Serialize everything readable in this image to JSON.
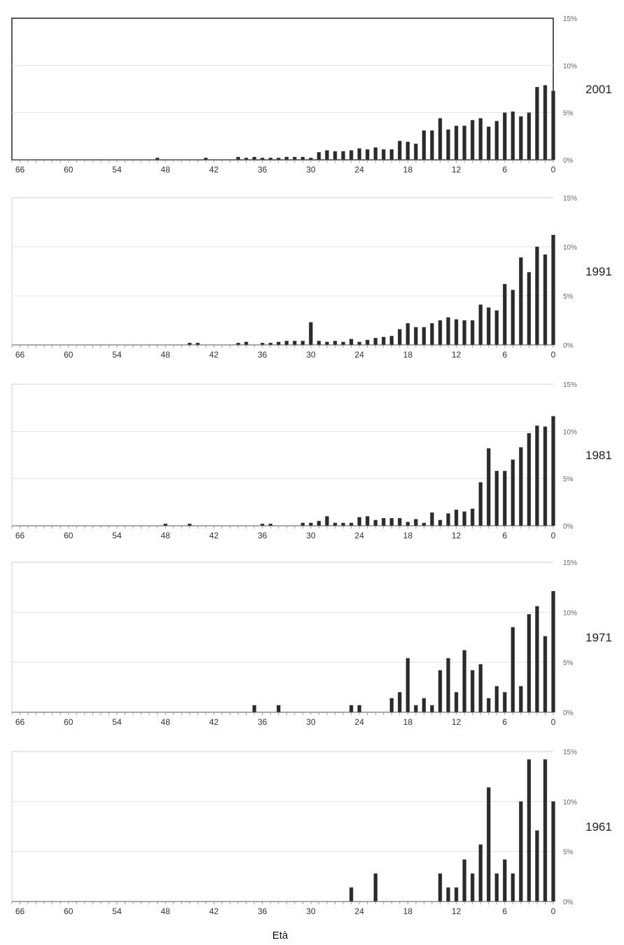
{
  "chart_data": [
    {
      "type": "bar",
      "series": [
        {
          "name": "2001",
          "values": [
            0,
            0,
            0,
            0,
            0,
            0,
            0,
            0,
            0,
            0,
            0,
            0,
            0,
            0,
            0,
            0,
            0,
            0,
            0.2,
            0,
            0,
            0,
            0,
            0,
            0.2,
            0,
            0,
            0,
            0.3,
            0.2,
            0.3,
            0.2,
            0.2,
            0.2,
            0.3,
            0.3,
            0.3,
            0.2,
            0.8,
            1.0,
            0.9,
            0.9,
            1.0,
            1.2,
            1.1,
            1.3,
            1.1,
            1.1,
            2.0,
            1.9,
            1.7,
            3.1,
            3.1,
            4.4,
            3.2,
            3.6,
            3.6,
            4.2,
            4.4,
            3.5,
            4.1,
            5.0,
            5.1,
            4.6,
            5.0,
            7.7,
            7.9,
            7.3
          ]
        }
      ],
      "xlim": [
        67,
        0
      ],
      "ylim": [
        0,
        15
      ],
      "ytick_labels": [
        "0%",
        "5%",
        "10%",
        "15%"
      ],
      "xtick_labels": [
        "66",
        "60",
        "54",
        "48",
        "42",
        "36",
        "30",
        "24",
        "18",
        "12",
        "6",
        "0"
      ]
    },
    {
      "type": "bar",
      "series": [
        {
          "name": "1991",
          "values": [
            0,
            0,
            0,
            0,
            0,
            0,
            0,
            0,
            0,
            0,
            0,
            0,
            0,
            0,
            0,
            0,
            0,
            0,
            0,
            0,
            0,
            0,
            0,
            0.2,
            0.2,
            0,
            0,
            0,
            0,
            0.2,
            0.3,
            0,
            0.2,
            0.2,
            0.3,
            0.4,
            0.4,
            0.4,
            2.3,
            0.4,
            0.3,
            0.4,
            0.3,
            0.6,
            0.3,
            0.5,
            0.7,
            0.8,
            0.9,
            1.6,
            2.2,
            1.8,
            1.8,
            2.2,
            2.5,
            2.8,
            2.6,
            2.5,
            2.5,
            4.1,
            3.8,
            3.5,
            6.2,
            5.6,
            8.9,
            7.4,
            10.0,
            9.2,
            11.2
          ]
        }
      ],
      "xlim": [
        67,
        0
      ],
      "ylim": [
        0,
        15
      ],
      "ytick_labels": [
        "0%",
        "5%",
        "10%",
        "15%"
      ],
      "xtick_labels": [
        "66",
        "60",
        "54",
        "48",
        "42",
        "36",
        "30",
        "24",
        "18",
        "12",
        "6",
        "0"
      ]
    },
    {
      "type": "bar",
      "series": [
        {
          "name": "1981",
          "values": [
            0,
            0,
            0,
            0,
            0,
            0,
            0,
            0,
            0,
            0,
            0,
            0,
            0,
            0,
            0,
            0,
            0,
            0,
            0,
            0,
            0,
            0.2,
            0,
            0,
            0.2,
            0,
            0,
            0,
            0,
            0,
            0,
            0,
            0,
            0.2,
            0.2,
            0,
            0,
            0,
            0.3,
            0.3,
            0.5,
            1.0,
            0.3,
            0.3,
            0.3,
            0.9,
            1.0,
            0.6,
            0.8,
            0.8,
            0.8,
            0.4,
            0.7,
            0.3,
            1.4,
            0.6,
            1.3,
            1.7,
            1.5,
            1.8,
            4.6,
            8.2,
            5.8,
            5.8,
            7.0,
            8.3,
            9.8,
            10.6,
            10.5,
            11.6
          ]
        }
      ],
      "xlim": [
        67,
        0
      ],
      "ylim": [
        0,
        15
      ],
      "ytick_labels": [
        "0%",
        "5%",
        "10%",
        "15%"
      ],
      "xtick_labels": [
        "66",
        "60",
        "54",
        "48",
        "42",
        "36",
        "30",
        "24",
        "18",
        "12",
        "6",
        "0"
      ]
    },
    {
      "type": "bar",
      "series": [
        {
          "name": "1971",
          "values": [
            0,
            0,
            0,
            0,
            0,
            0,
            0,
            0,
            0,
            0,
            0,
            0,
            0,
            0,
            0,
            0,
            0,
            0,
            0,
            0,
            0,
            0,
            0,
            0,
            0,
            0,
            0,
            0,
            0,
            0,
            0,
            0.7,
            0,
            0,
            0.7,
            0,
            0,
            0,
            0,
            0,
            0,
            0,
            0,
            0.7,
            0.7,
            0,
            0,
            0,
            1.4,
            2.0,
            5.4,
            0.7,
            1.4,
            0.7,
            4.2,
            5.4,
            2.0,
            6.2,
            4.2,
            4.8,
            1.4,
            2.6,
            2.0,
            8.5,
            2.6,
            9.8,
            10.6,
            7.6,
            12.1
          ]
        }
      ],
      "xlim": [
        67,
        0
      ],
      "ylim": [
        0,
        15
      ],
      "ytick_labels": [
        "0%",
        "5%",
        "10%",
        "15%"
      ],
      "xtick_labels": [
        "66",
        "60",
        "54",
        "48",
        "42",
        "36",
        "30",
        "24",
        "18",
        "12",
        "6",
        "0"
      ]
    },
    {
      "type": "bar",
      "series": [
        {
          "name": "1961",
          "values": [
            0,
            0,
            0,
            0,
            0,
            0,
            0,
            0,
            0,
            0,
            0,
            0,
            0,
            0,
            0,
            0,
            0,
            0,
            0,
            0,
            0,
            0,
            0,
            0,
            0,
            0,
            0,
            0,
            0,
            0,
            0,
            0,
            0,
            0,
            0,
            0,
            0,
            0,
            0,
            0,
            0,
            1.4,
            0,
            0,
            2.8,
            0,
            0,
            0,
            0,
            0,
            0,
            0,
            2.8,
            1.4,
            1.4,
            4.2,
            2.8,
            5.7,
            11.4,
            2.8,
            4.2,
            2.8,
            10.0,
            14.2,
            7.1,
            14.2,
            10.0
          ]
        }
      ],
      "xlim": [
        67,
        0
      ],
      "ylim": [
        0,
        15
      ],
      "ytick_labels": [
        "0%",
        "5%",
        "10%",
        "15%"
      ],
      "xtick_labels": [
        "66",
        "60",
        "54",
        "48",
        "42",
        "36",
        "30",
        "24",
        "18",
        "12",
        "6",
        "0"
      ]
    }
  ],
  "xlabel": "Età"
}
